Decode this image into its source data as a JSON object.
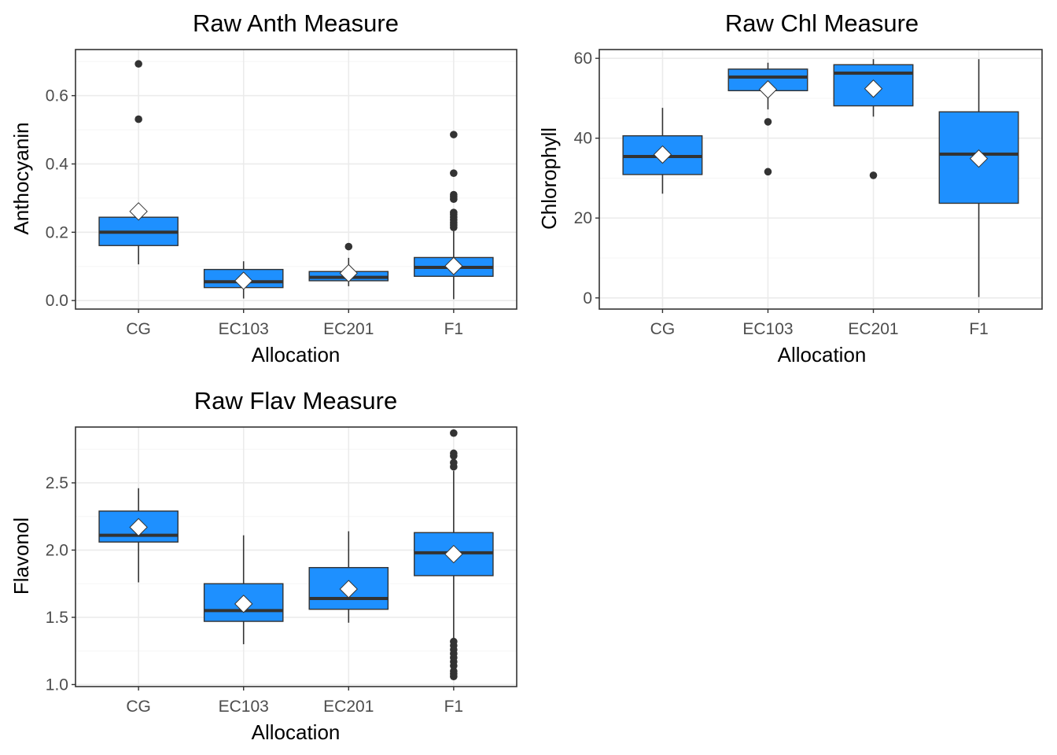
{
  "colors": {
    "box_fill": "#1E90FF",
    "box_stroke": "#333333",
    "median": "#333333",
    "outlier": "#333333",
    "mean_marker_fill": "#FFFFFF",
    "grid_major": "#EBEBEB",
    "grid_minor": "#F5F5F5",
    "panel_border": "#333333"
  },
  "chart_data": [
    {
      "type": "box",
      "title": "Raw Anth Measure",
      "xlabel": "Allocation",
      "ylabel": "Anthocyanin",
      "categories": [
        "CG",
        "EC103",
        "EC201",
        "F1"
      ],
      "ylim": [
        -0.025,
        0.735
      ],
      "yticks": [
        0.0,
        0.2,
        0.4,
        0.6
      ],
      "ytick_labels": [
        "0.0",
        "0.2",
        "0.4",
        "0.6"
      ],
      "grid": true,
      "mean_marker": "diamond",
      "boxes": [
        {
          "category": "CG",
          "whisker_low": 0.106,
          "q1": 0.161,
          "median": 0.2,
          "q3": 0.244,
          "whisker_high": 0.244,
          "mean": 0.261,
          "outliers": [
            0.531,
            0.693
          ]
        },
        {
          "category": "EC103",
          "whisker_low": 0.006,
          "q1": 0.038,
          "median": 0.055,
          "q3": 0.091,
          "whisker_high": 0.115,
          "mean": 0.058,
          "outliers": []
        },
        {
          "category": "EC201",
          "whisker_low": 0.042,
          "q1": 0.058,
          "median": 0.068,
          "q3": 0.085,
          "whisker_high": 0.125,
          "mean": 0.08,
          "outliers": [
            0.158
          ]
        },
        {
          "category": "F1",
          "whisker_low": 0.004,
          "q1": 0.071,
          "median": 0.097,
          "q3": 0.126,
          "whisker_high": 0.203,
          "mean": 0.101,
          "outliers": [
            0.214,
            0.221,
            0.228,
            0.236,
            0.244,
            0.252,
            0.258,
            0.297,
            0.304,
            0.31,
            0.373,
            0.486
          ]
        }
      ]
    },
    {
      "type": "box",
      "title": "Raw Chl Measure",
      "xlabel": "Allocation",
      "ylabel": "Chlorophyll",
      "categories": [
        "CG",
        "EC103",
        "EC201",
        "F1"
      ],
      "ylim": [
        -2.8,
        62.2
      ],
      "yticks": [
        0,
        20,
        40,
        60
      ],
      "ytick_labels": [
        "0",
        "20",
        "40",
        "60"
      ],
      "grid": true,
      "mean_marker": "diamond",
      "boxes": [
        {
          "category": "CG",
          "whisker_low": 26.1,
          "q1": 30.9,
          "median": 35.4,
          "q3": 40.6,
          "whisker_high": 47.6,
          "mean": 35.9,
          "outliers": []
        },
        {
          "category": "EC103",
          "whisker_low": 47.2,
          "q1": 51.9,
          "median": 55.3,
          "q3": 57.3,
          "whisker_high": 58.9,
          "mean": 52.2,
          "outliers": [
            31.6,
            44.1
          ]
        },
        {
          "category": "EC201",
          "whisker_low": 45.4,
          "q1": 48.1,
          "median": 56.3,
          "q3": 58.4,
          "whisker_high": 59.8,
          "mean": 52.4,
          "outliers": [
            30.7
          ]
        },
        {
          "category": "F1",
          "whisker_low": 0.2,
          "q1": 23.7,
          "median": 36.0,
          "q3": 46.6,
          "whisker_high": 59.8,
          "mean": 34.9,
          "outliers": []
        }
      ]
    },
    {
      "type": "box",
      "title": "Raw Flav Measure",
      "xlabel": "Allocation",
      "ylabel": "Flavonol",
      "categories": [
        "CG",
        "EC103",
        "EC201",
        "F1"
      ],
      "ylim": [
        0.985,
        2.915
      ],
      "yticks": [
        1.0,
        1.5,
        2.0,
        2.5
      ],
      "ytick_labels": [
        "1.0",
        "1.5",
        "2.0",
        "2.5"
      ],
      "grid": true,
      "mean_marker": "diamond",
      "boxes": [
        {
          "category": "CG",
          "whisker_low": 1.76,
          "q1": 2.06,
          "median": 2.11,
          "q3": 2.29,
          "whisker_high": 2.46,
          "mean": 2.17,
          "outliers": []
        },
        {
          "category": "EC103",
          "whisker_low": 1.3,
          "q1": 1.47,
          "median": 1.55,
          "q3": 1.75,
          "whisker_high": 2.11,
          "mean": 1.6,
          "outliers": []
        },
        {
          "category": "EC201",
          "whisker_low": 1.46,
          "q1": 1.56,
          "median": 1.64,
          "q3": 1.87,
          "whisker_high": 2.14,
          "mean": 1.71,
          "outliers": []
        },
        {
          "category": "F1",
          "whisker_low": 1.34,
          "q1": 1.81,
          "median": 1.98,
          "q3": 2.13,
          "whisker_high": 2.59,
          "mean": 1.97,
          "outliers": [
            1.06,
            1.08,
            1.1,
            1.14,
            1.17,
            1.2,
            1.23,
            1.26,
            1.29,
            1.32,
            2.62,
            2.65,
            2.7,
            2.72,
            2.87
          ]
        }
      ]
    }
  ]
}
